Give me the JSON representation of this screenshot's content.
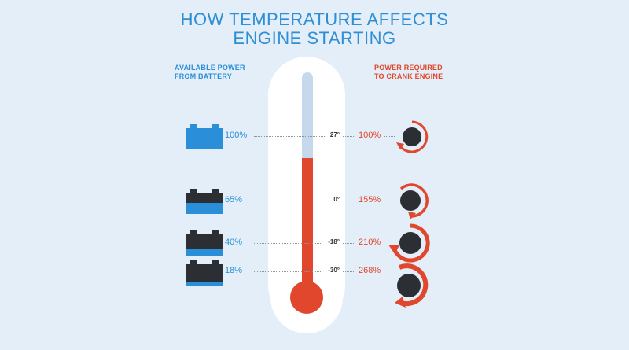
{
  "title_line1": "HOW TEMPERATURE AFFECTS",
  "title_line2": "ENGINE STARTING",
  "left_heading_line1": "AVAILABLE POWER",
  "left_heading_line2": "FROM BATTERY",
  "right_heading_line1": "POWER REQUIRED",
  "right_heading_line2": "TO CRANK ENGINE",
  "rows": [
    {
      "battery": "100%",
      "temp": "27°",
      "required": "100%"
    },
    {
      "battery": "65%",
      "temp": "0°",
      "required": "155%"
    },
    {
      "battery": "40%",
      "temp": "-18°",
      "required": "210%"
    },
    {
      "battery": "18%",
      "temp": "-30°",
      "required": "268%"
    }
  ],
  "thermometer_fill_fraction": 0.62,
  "colors": {
    "background": "#e3eef8",
    "accent_blue": "#2a8fd8",
    "accent_red": "#e0472d",
    "dark": "#2b2f33"
  },
  "icons": [
    "battery-icon",
    "crank-gauge-icon",
    "thermometer-icon"
  ]
}
